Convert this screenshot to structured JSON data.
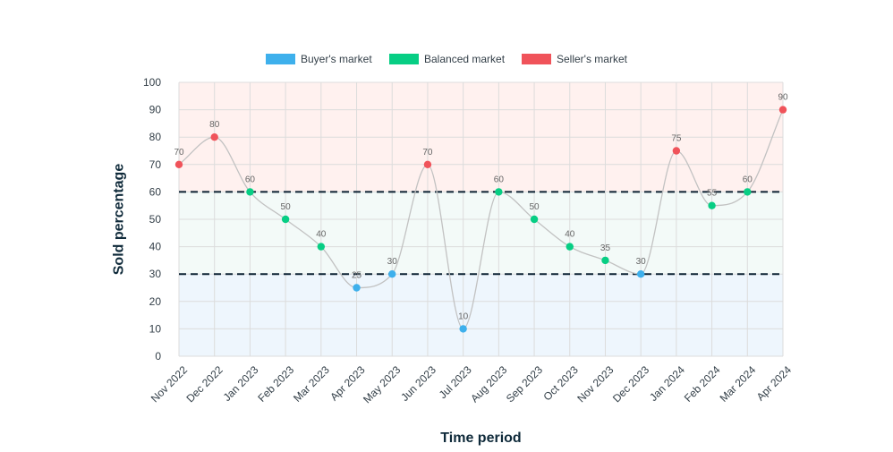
{
  "chart_data": {
    "type": "line",
    "xlabel": "Time period",
    "ylabel": "Sold percentage",
    "ylim": [
      0,
      100
    ],
    "ytick_step": 10,
    "grid": true,
    "legend_position": "top",
    "categories": [
      "Nov 2022",
      "Dec 2022",
      "Jan 2023",
      "Feb 2023",
      "Mar 2023",
      "Apr 2023",
      "May 2023",
      "Jun 2023",
      "Jul 2023",
      "Aug 2023",
      "Sep 2023",
      "Oct 2023",
      "Nov 2023",
      "Dec 2023",
      "Jan 2024",
      "Feb 2024",
      "Mar 2024",
      "Apr 2024"
    ],
    "values": [
      70,
      80,
      60,
      50,
      40,
      25,
      30,
      70,
      10,
      60,
      50,
      40,
      35,
      30,
      75,
      55,
      60,
      90
    ],
    "thresholds": [
      30,
      60
    ],
    "legend": [
      {
        "label": "Buyer's market",
        "color": "#3eb0ec"
      },
      {
        "label": "Balanced market",
        "color": "#07ce84"
      },
      {
        "label": "Seller's market",
        "color": "#f0535a"
      }
    ],
    "bands": [
      {
        "from": 0,
        "to": 30,
        "color": "#eef6fd"
      },
      {
        "from": 30,
        "to": 60,
        "color": "#f3faf8"
      },
      {
        "from": 60,
        "to": 100,
        "color": "#fff1ef"
      }
    ],
    "line_color": "#c2c2c2",
    "threshold_color": "#0c2233"
  }
}
